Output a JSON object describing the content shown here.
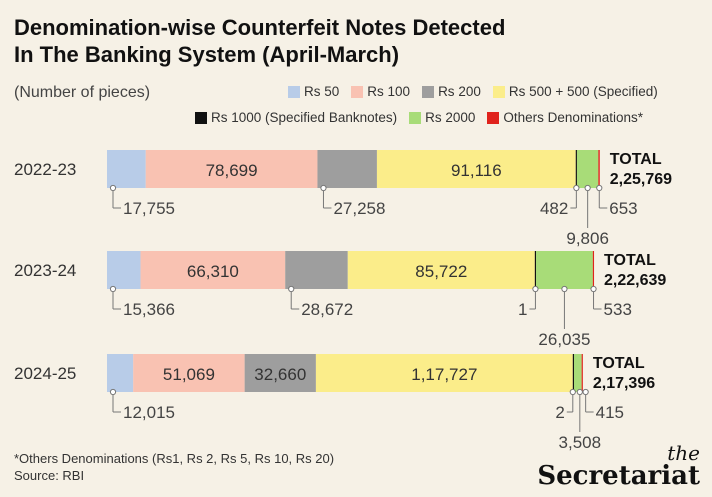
{
  "chart_data": {
    "type": "bar",
    "orientation": "horizontal-stacked",
    "title_line1": "Denomination-wise Counterfeit Notes Detected",
    "title_line2": "In The Banking System (April-March)",
    "subtitle": "(Number of pieces)",
    "categories": [
      "2022-23",
      "2023-24",
      "2024-25"
    ],
    "series": [
      {
        "name": "Rs 50",
        "color": "#b8cce8",
        "values": [
          17755,
          15366,
          12015
        ],
        "labels": [
          "17,755",
          "15,366",
          "12,015"
        ]
      },
      {
        "name": "Rs 100",
        "color": "#f9c2b2",
        "values": [
          78699,
          66310,
          51069
        ],
        "labels": [
          "78,699",
          "66,310",
          "51,069"
        ]
      },
      {
        "name": "Rs 200",
        "color": "#9e9e9e",
        "values": [
          27258,
          28672,
          32660
        ],
        "labels": [
          "27,258",
          "28,672",
          "32,660"
        ]
      },
      {
        "name": "Rs 500 + 500 (Specified)",
        "color": "#fbed8a",
        "values": [
          91116,
          85722,
          117727
        ],
        "labels": [
          "91,116",
          "85,722",
          "1,17,727"
        ]
      },
      {
        "name": "Rs 1000 (Specified Banknotes)",
        "color": "#111111",
        "values": [
          482,
          1,
          2
        ],
        "labels": [
          "482",
          "1",
          "2"
        ]
      },
      {
        "name": "Rs 2000",
        "color": "#a8dc78",
        "values": [
          9806,
          26035,
          3508
        ],
        "labels": [
          "9,806",
          "26,035",
          "3,508"
        ]
      },
      {
        "name": "Others Denominations*",
        "color": "#e0231c",
        "values": [
          653,
          533,
          415
        ],
        "labels": [
          "653",
          "533",
          "415"
        ]
      }
    ],
    "totals_label": "TOTAL",
    "totals": [
      "2,25,769",
      "2,22,639",
      "2,17,396"
    ],
    "legend_position": "top-right"
  },
  "footnote": {
    "line1": "*Others Denominations (Rs1, Rs 2, Rs 5, Rs 10, Rs 20)",
    "line2": "Source: RBI"
  },
  "brand": {
    "the": "the",
    "name": "Secretariat"
  }
}
